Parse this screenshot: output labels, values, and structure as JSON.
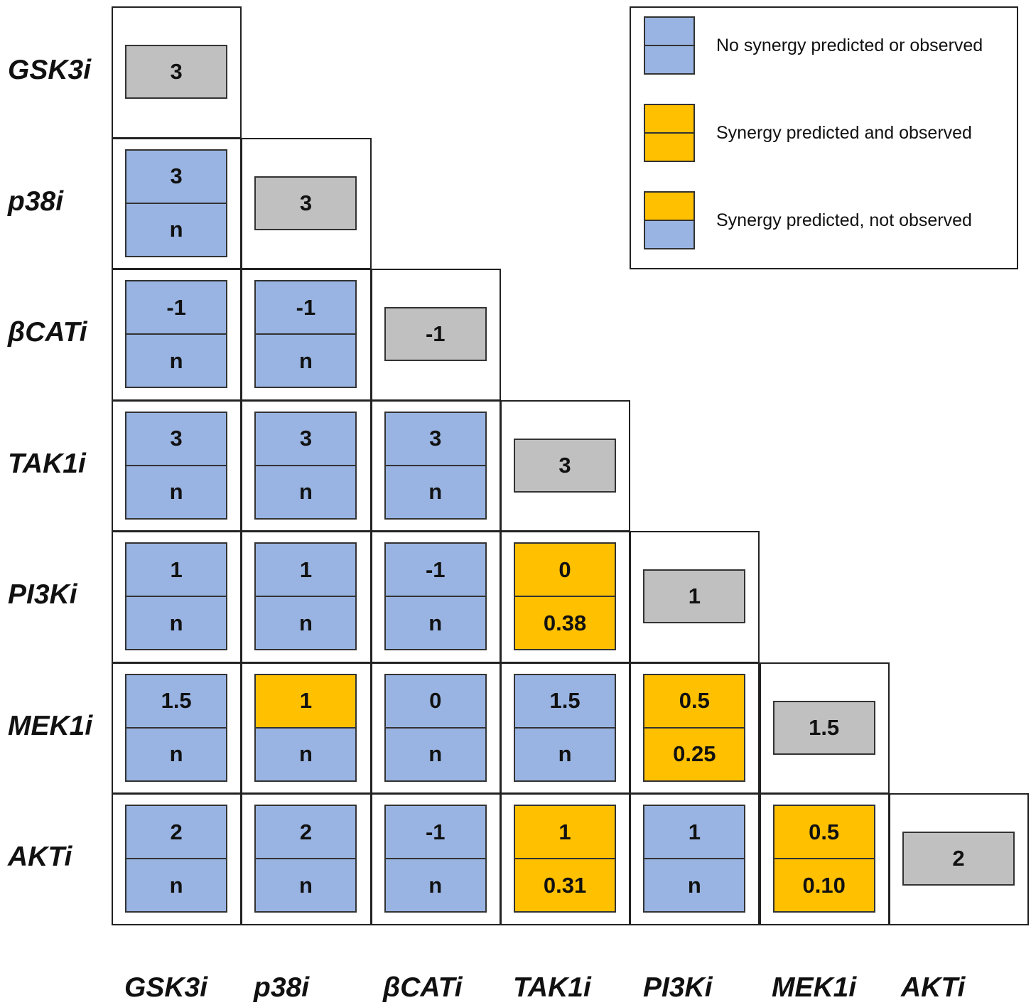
{
  "colors": {
    "blue": "#99b4e2",
    "yellow": "#ffc000",
    "gray": "#c0c0c0"
  },
  "rows": [
    "GSK3i",
    "p38i",
    "βCATi",
    "TAK1i",
    "PI3Ki",
    "MEK1i",
    "AKTi"
  ],
  "columns": [
    "GSK3i",
    "p38i",
    "βCATi",
    "TAK1i",
    "PI3Ki",
    "MEK1i",
    "AKTi"
  ],
  "diagonal": [
    "3",
    "3",
    "-1",
    "3",
    "1",
    "1.5",
    "2"
  ],
  "cells": [
    {
      "row": 1,
      "col": 0,
      "top": "3",
      "bottom": "n",
      "top_color": "blue",
      "bottom_color": "blue"
    },
    {
      "row": 2,
      "col": 0,
      "top": "-1",
      "bottom": "n",
      "top_color": "blue",
      "bottom_color": "blue"
    },
    {
      "row": 2,
      "col": 1,
      "top": "-1",
      "bottom": "n",
      "top_color": "blue",
      "bottom_color": "blue"
    },
    {
      "row": 3,
      "col": 0,
      "top": "3",
      "bottom": "n",
      "top_color": "blue",
      "bottom_color": "blue"
    },
    {
      "row": 3,
      "col": 1,
      "top": "3",
      "bottom": "n",
      "top_color": "blue",
      "bottom_color": "blue"
    },
    {
      "row": 3,
      "col": 2,
      "top": "3",
      "bottom": "n",
      "top_color": "blue",
      "bottom_color": "blue"
    },
    {
      "row": 4,
      "col": 0,
      "top": "1",
      "bottom": "n",
      "top_color": "blue",
      "bottom_color": "blue"
    },
    {
      "row": 4,
      "col": 1,
      "top": "1",
      "bottom": "n",
      "top_color": "blue",
      "bottom_color": "blue"
    },
    {
      "row": 4,
      "col": 2,
      "top": "-1",
      "bottom": "n",
      "top_color": "blue",
      "bottom_color": "blue"
    },
    {
      "row": 4,
      "col": 3,
      "top": "0",
      "bottom": "0.38",
      "top_color": "yellow",
      "bottom_color": "yellow"
    },
    {
      "row": 5,
      "col": 0,
      "top": "1.5",
      "bottom": "n",
      "top_color": "blue",
      "bottom_color": "blue"
    },
    {
      "row": 5,
      "col": 1,
      "top": "1",
      "bottom": "n",
      "top_color": "yellow",
      "bottom_color": "blue"
    },
    {
      "row": 5,
      "col": 2,
      "top": "0",
      "bottom": "n",
      "top_color": "blue",
      "bottom_color": "blue"
    },
    {
      "row": 5,
      "col": 3,
      "top": "1.5",
      "bottom": "n",
      "top_color": "blue",
      "bottom_color": "blue"
    },
    {
      "row": 5,
      "col": 4,
      "top": "0.5",
      "bottom": "0.25",
      "top_color": "yellow",
      "bottom_color": "yellow"
    },
    {
      "row": 6,
      "col": 0,
      "top": "2",
      "bottom": "n",
      "top_color": "blue",
      "bottom_color": "blue"
    },
    {
      "row": 6,
      "col": 1,
      "top": "2",
      "bottom": "n",
      "top_color": "blue",
      "bottom_color": "blue"
    },
    {
      "row": 6,
      "col": 2,
      "top": "-1",
      "bottom": "n",
      "top_color": "blue",
      "bottom_color": "blue"
    },
    {
      "row": 6,
      "col": 3,
      "top": "1",
      "bottom": "0.31",
      "top_color": "yellow",
      "bottom_color": "yellow"
    },
    {
      "row": 6,
      "col": 4,
      "top": "1",
      "bottom": "n",
      "top_color": "blue",
      "bottom_color": "blue"
    },
    {
      "row": 6,
      "col": 5,
      "top": "0.5",
      "bottom": "0.10",
      "top_color": "yellow",
      "bottom_color": "yellow"
    }
  ],
  "legend": {
    "items": [
      {
        "label": "No synergy predicted or observed",
        "top_color": "blue",
        "bottom_color": "blue"
      },
      {
        "label": "Synergy predicted and observed",
        "top_color": "yellow",
        "bottom_color": "yellow"
      },
      {
        "label": "Synergy predicted, not observed",
        "top_color": "yellow",
        "bottom_color": "blue"
      }
    ]
  }
}
